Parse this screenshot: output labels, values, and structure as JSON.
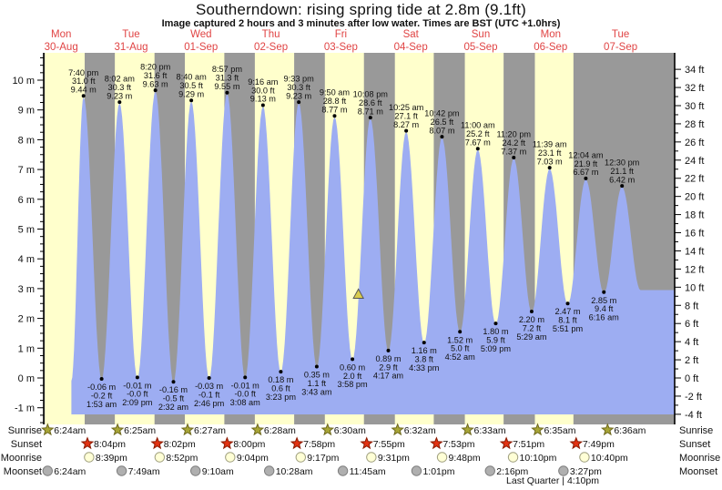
{
  "header": {
    "title": "Southerndown: rising  spring tide at 2.8m (9.1ft)",
    "subtitle": "Image captured 2 hours and 3 minutes after low water. Times are BST (UTC +1.0hrs)"
  },
  "astro": {
    "row_labels": [
      "Sunrise",
      "Sunset",
      "Moonrise",
      "Moonset"
    ],
    "moon_phase_note": "Last Quarter | 4:10pm"
  },
  "chart_data": {
    "type": "area",
    "title": "Southerndown: rising  spring tide at 2.8m (9.1ft)",
    "xlabel": "",
    "ylabel_left": "m",
    "ylabel_right": "ft",
    "y_axis_left": {
      "unit": "m",
      "min": -1,
      "max": 10,
      "label_step": 1,
      "minor_step": 0.25
    },
    "y_axis_right": {
      "unit": "ft",
      "min": -4,
      "max": 34,
      "label_step": 2,
      "minor_step": 1
    },
    "legend": "none",
    "grid": false,
    "days": [
      {
        "dow": "Mon",
        "date": "30-Aug",
        "sunrise": "6:24am",
        "sunset": "8:04pm",
        "moonrise": "8:39pm",
        "moonset": "6:24am"
      },
      {
        "dow": "Tue",
        "date": "31-Aug",
        "sunrise": "6:25am",
        "sunset": "8:02pm",
        "moonrise": "8:52pm",
        "moonset": "7:49am"
      },
      {
        "dow": "Wed",
        "date": "01-Sep",
        "sunrise": "6:27am",
        "sunset": "8:00pm",
        "moonrise": "9:04pm",
        "moonset": "9:10am"
      },
      {
        "dow": "Thu",
        "date": "02-Sep",
        "sunrise": "6:28am",
        "sunset": "7:58pm",
        "moonrise": "9:17pm",
        "moonset": "10:28am"
      },
      {
        "dow": "Fri",
        "date": "03-Sep",
        "sunrise": "6:30am",
        "sunset": "7:55pm",
        "moonrise": "9:31pm",
        "moonset": "11:45am"
      },
      {
        "dow": "Sat",
        "date": "04-Sep",
        "sunrise": "6:32am",
        "sunset": "7:53pm",
        "moonrise": "9:48pm",
        "moonset": "1:01pm"
      },
      {
        "dow": "Sun",
        "date": "05-Sep",
        "sunrise": "6:33am",
        "sunset": "7:51pm",
        "moonrise": "10:10pm",
        "moonset": "2:16pm"
      },
      {
        "dow": "Mon",
        "date": "06-Sep",
        "sunrise": "6:35am",
        "sunset": "7:49pm",
        "moonrise": "10:40pm",
        "moonset": "3:27pm"
      },
      {
        "dow": "Tue",
        "date": "07-Sep",
        "sunrise": "6:36am",
        "sunset": null,
        "moonrise": null,
        "moonset": null
      }
    ],
    "high_tides": [
      {
        "day": 0,
        "time": "7:40 pm",
        "ft": "31.0 ft",
        "m": "9.44 m",
        "height_m": 9.44
      },
      {
        "day": 1,
        "time": "8:02 am",
        "ft": "30.3 ft",
        "m": "9.23 m",
        "height_m": 9.23
      },
      {
        "day": 1,
        "time": "8:20 pm",
        "ft": "31.6 ft",
        "m": "9.63 m",
        "height_m": 9.63
      },
      {
        "day": 2,
        "time": "8:40 am",
        "ft": "30.5 ft",
        "m": "9.29 m",
        "height_m": 9.29
      },
      {
        "day": 2,
        "time": "8:57 pm",
        "ft": "31.3 ft",
        "m": "9.55 m",
        "height_m": 9.55
      },
      {
        "day": 3,
        "time": "9:16 am",
        "ft": "30.0 ft",
        "m": "9.13 m",
        "height_m": 9.13
      },
      {
        "day": 3,
        "time": "9:33 pm",
        "ft": "30.3 ft",
        "m": "9.23 m",
        "height_m": 9.23
      },
      {
        "day": 4,
        "time": "9:50 am",
        "ft": "28.8 ft",
        "m": "8.77 m",
        "height_m": 8.77
      },
      {
        "day": 4,
        "time": "10:08 pm",
        "ft": "28.6 ft",
        "m": "8.71 m",
        "height_m": 8.71
      },
      {
        "day": 5,
        "time": "10:25 am",
        "ft": "27.1 ft",
        "m": "8.27 m",
        "height_m": 8.27
      },
      {
        "day": 5,
        "time": "10:42 pm",
        "ft": "26.5 ft",
        "m": "8.07 m",
        "height_m": 8.07
      },
      {
        "day": 6,
        "time": "11:00 am",
        "ft": "25.2 ft",
        "m": "7.67 m",
        "height_m": 7.67
      },
      {
        "day": 6,
        "time": "11:20 pm",
        "ft": "24.2 ft",
        "m": "7.37 m",
        "height_m": 7.37
      },
      {
        "day": 7,
        "time": "11:39 am",
        "ft": "23.1 ft",
        "m": "7.03 m",
        "height_m": 7.03
      },
      {
        "day": 8,
        "time": "12:04 am",
        "ft": "21.9 ft",
        "m": "6.67 m",
        "height_m": 6.67
      },
      {
        "day": 8,
        "time": "12:30 pm",
        "ft": "21.1 ft",
        "m": "6.42 m",
        "height_m": 6.42
      }
    ],
    "low_tides": [
      {
        "day": 1,
        "time": "1:53 am",
        "ft": "-0.2 ft",
        "m": "-0.06 m",
        "height_m": -0.06
      },
      {
        "day": 1,
        "time": "2:09 pm",
        "ft": "-0.0 ft",
        "m": "-0.01 m",
        "height_m": -0.01
      },
      {
        "day": 2,
        "time": "2:32 am",
        "ft": "-0.5 ft",
        "m": "-0.16 m",
        "height_m": -0.16
      },
      {
        "day": 2,
        "time": "2:46 pm",
        "ft": "-0.1 ft",
        "m": "-0.03 m",
        "height_m": -0.03
      },
      {
        "day": 3,
        "time": "3:08 am",
        "ft": "-0.0 ft",
        "m": "-0.01 m",
        "height_m": -0.01
      },
      {
        "day": 3,
        "time": "3:23 pm",
        "ft": "0.6 ft",
        "m": "0.18 m",
        "height_m": 0.18
      },
      {
        "day": 4,
        "time": "3:43 am",
        "ft": "1.1 ft",
        "m": "0.35 m",
        "height_m": 0.35
      },
      {
        "day": 4,
        "time": "3:58 pm",
        "ft": "2.0 ft",
        "m": "0.60 m",
        "height_m": 0.6
      },
      {
        "day": 5,
        "time": "4:17 am",
        "ft": "2.9 ft",
        "m": "0.89 m",
        "height_m": 0.89
      },
      {
        "day": 5,
        "time": "4:33 pm",
        "ft": "3.8 ft",
        "m": "1.16 m",
        "height_m": 1.16
      },
      {
        "day": 6,
        "time": "4:52 am",
        "ft": "5.0 ft",
        "m": "1.52 m",
        "height_m": 1.52
      },
      {
        "day": 6,
        "time": "5:09 pm",
        "ft": "5.9 ft",
        "m": "1.80 m",
        "height_m": 1.8
      },
      {
        "day": 7,
        "time": "5:29 am",
        "ft": "7.2 ft",
        "m": "2.20 m",
        "height_m": 2.2
      },
      {
        "day": 7,
        "time": "5:51 pm",
        "ft": "8.1 ft",
        "m": "2.47 m",
        "height_m": 2.47
      },
      {
        "day": 8,
        "time": "6:16 am",
        "ft": "9.4 ft",
        "m": "2.85 m",
        "height_m": 2.85
      }
    ],
    "curve_boundary": {
      "start": {
        "day": 0,
        "time": "3:30 pm",
        "height_m": -0.1
      },
      "end": {
        "day": 8,
        "time": "6:50 pm",
        "height_m": 2.95
      }
    },
    "current_level_marker": {
      "day": 4,
      "time": "6:01 pm",
      "height_m": 2.8
    },
    "colors": {
      "day_band": "#FFFFCC",
      "night_band": "#999999",
      "tide_fill": "#9DADF2",
      "day_label_red": "#E04444",
      "axis_text": "#111111",
      "tide_label_text": "#111111",
      "sunrise_star_fill": "#A8A636",
      "sunrise_star_stroke": "#6E681C",
      "sunset_star_fill": "#E23212",
      "sunset_star_stroke": "#8B1A00",
      "moonrise_circle_fill": "#FFFFD6",
      "moonrise_circle_stroke": "#A0A080",
      "moonset_circle_fill": "#AFAFAF",
      "moonset_circle_stroke": "#7E7E7E",
      "marker_triangle_fill": "#D9CC4F",
      "marker_triangle_stroke": "#555555"
    }
  }
}
